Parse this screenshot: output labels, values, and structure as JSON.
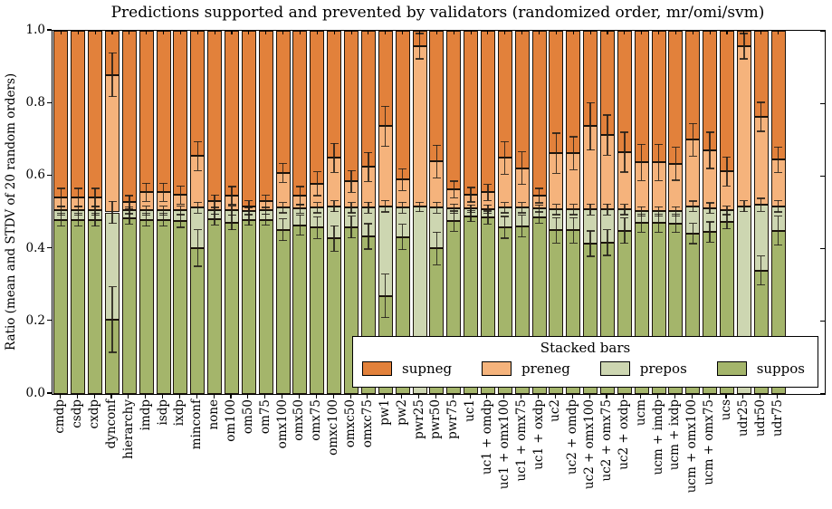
{
  "title": "Predictions supported and prevented by validators (randomized order, mr/omi/svm)",
  "ylabel": "Ratio (mean and STDV of 20 random orders)",
  "yticks": [
    "0.0",
    "0.2",
    "0.4",
    "0.6",
    "0.8",
    "1.0"
  ],
  "legend": {
    "title": "Stacked bars",
    "entries": [
      {
        "label": "supneg",
        "color": "#E2813B"
      },
      {
        "label": "preneg",
        "color": "#F5B37C"
      },
      {
        "label": "prepos",
        "color": "#CDD6B1"
      },
      {
        "label": "suppos",
        "color": "#A4B56B"
      }
    ]
  },
  "chart_data": {
    "type": "bar",
    "stacked": true,
    "title": "Predictions supported and prevented by validators (randomized order, mr/omi/svm)",
    "xlabel": "",
    "ylabel": "Ratio (mean and STDV of 20 random orders)",
    "ylim": [
      0,
      1
    ],
    "grid": false,
    "legend_position": "lower right",
    "series_order_bottom_to_top": [
      "suppos",
      "prepos",
      "preneg",
      "supneg"
    ],
    "colors": {
      "suppos": "#A4B56B",
      "prepos": "#CDD6B1",
      "preneg": "#F5B37C",
      "supneg": "#E2813B"
    },
    "note": "Values are cumulative segment tops (0-1). supneg_top is 1.0 for every bar. err = [stdv at suppos_top, stdv at prepos_top, stdv at preneg_top].",
    "bars": [
      {
        "label": "cmdp",
        "suppos_top": 0.48,
        "prepos_top": 0.505,
        "preneg_top": 0.541,
        "supneg_top": 1.0,
        "err": [
          0.018,
          0.012,
          0.025
        ]
      },
      {
        "label": "csdp",
        "suppos_top": 0.48,
        "prepos_top": 0.505,
        "preneg_top": 0.541,
        "supneg_top": 1.0,
        "err": [
          0.018,
          0.012,
          0.025
        ]
      },
      {
        "label": "cxdp",
        "suppos_top": 0.48,
        "prepos_top": 0.505,
        "preneg_top": 0.541,
        "supneg_top": 1.0,
        "err": [
          0.018,
          0.012,
          0.025
        ]
      },
      {
        "label": "dynconf",
        "suppos_top": 0.205,
        "prepos_top": 0.5,
        "preneg_top": 0.879,
        "supneg_top": 1.0,
        "err": [
          0.09,
          0.03,
          0.06
        ]
      },
      {
        "label": "hierarchy",
        "suppos_top": 0.483,
        "prepos_top": 0.505,
        "preneg_top": 0.528,
        "supneg_top": 1.0,
        "err": [
          0.015,
          0.01,
          0.018
        ]
      },
      {
        "label": "imdp",
        "suppos_top": 0.48,
        "prepos_top": 0.505,
        "preneg_top": 0.555,
        "supneg_top": 1.0,
        "err": [
          0.018,
          0.012,
          0.025
        ]
      },
      {
        "label": "isdp",
        "suppos_top": 0.48,
        "prepos_top": 0.505,
        "preneg_top": 0.555,
        "supneg_top": 1.0,
        "err": [
          0.018,
          0.012,
          0.025
        ]
      },
      {
        "label": "ixdp",
        "suppos_top": 0.477,
        "prepos_top": 0.505,
        "preneg_top": 0.548,
        "supneg_top": 1.0,
        "err": [
          0.018,
          0.012,
          0.025
        ]
      },
      {
        "label": "minconf",
        "suppos_top": 0.402,
        "prepos_top": 0.513,
        "preneg_top": 0.655,
        "supneg_top": 1.0,
        "err": [
          0.05,
          0.015,
          0.04
        ]
      },
      {
        "label": "none",
        "suppos_top": 0.481,
        "prepos_top": 0.505,
        "preneg_top": 0.53,
        "supneg_top": 1.0,
        "err": [
          0.015,
          0.01,
          0.018
        ]
      },
      {
        "label": "om100",
        "suppos_top": 0.472,
        "prepos_top": 0.505,
        "preneg_top": 0.546,
        "supneg_top": 1.0,
        "err": [
          0.02,
          0.012,
          0.025
        ]
      },
      {
        "label": "om50",
        "suppos_top": 0.48,
        "prepos_top": 0.503,
        "preneg_top": 0.517,
        "supneg_top": 1.0,
        "err": [
          0.015,
          0.01,
          0.015
        ]
      },
      {
        "label": "om75",
        "suppos_top": 0.48,
        "prepos_top": 0.505,
        "preneg_top": 0.53,
        "supneg_top": 1.0,
        "err": [
          0.015,
          0.01,
          0.018
        ]
      },
      {
        "label": "omx100",
        "suppos_top": 0.452,
        "prepos_top": 0.513,
        "preneg_top": 0.609,
        "supneg_top": 1.0,
        "err": [
          0.03,
          0.014,
          0.026
        ]
      },
      {
        "label": "omx50",
        "suppos_top": 0.465,
        "prepos_top": 0.51,
        "preneg_top": 0.546,
        "supneg_top": 1.0,
        "err": [
          0.028,
          0.013,
          0.025
        ]
      },
      {
        "label": "omx75",
        "suppos_top": 0.458,
        "prepos_top": 0.513,
        "preneg_top": 0.579,
        "supneg_top": 1.0,
        "err": [
          0.03,
          0.014,
          0.033
        ]
      },
      {
        "label": "omxc100",
        "suppos_top": 0.428,
        "prepos_top": 0.517,
        "preneg_top": 0.65,
        "supneg_top": 1.0,
        "err": [
          0.035,
          0.015,
          0.04
        ]
      },
      {
        "label": "omxc50",
        "suppos_top": 0.46,
        "prepos_top": 0.513,
        "preneg_top": 0.585,
        "supneg_top": 1.0,
        "err": [
          0.03,
          0.014,
          0.03
        ]
      },
      {
        "label": "omxc75",
        "suppos_top": 0.434,
        "prepos_top": 0.513,
        "preneg_top": 0.625,
        "supneg_top": 1.0,
        "err": [
          0.035,
          0.015,
          0.04
        ]
      },
      {
        "label": "pw1",
        "suppos_top": 0.27,
        "prepos_top": 0.517,
        "preneg_top": 0.737,
        "supneg_top": 1.0,
        "err": [
          0.06,
          0.016,
          0.055
        ]
      },
      {
        "label": "pw2",
        "suppos_top": 0.432,
        "prepos_top": 0.513,
        "preneg_top": 0.59,
        "supneg_top": 1.0,
        "err": [
          0.035,
          0.015,
          0.03
        ]
      },
      {
        "label": "pwr25",
        "suppos_top": 0.0,
        "prepos_top": 0.515,
        "preneg_top": 0.958,
        "supneg_top": 1.0,
        "err": [
          0.0,
          0.013,
          0.035
        ]
      },
      {
        "label": "pwr50",
        "suppos_top": 0.401,
        "prepos_top": 0.513,
        "preneg_top": 0.64,
        "supneg_top": 1.0,
        "err": [
          0.045,
          0.015,
          0.045
        ]
      },
      {
        "label": "pwr75",
        "suppos_top": 0.476,
        "prepos_top": 0.51,
        "preneg_top": 0.563,
        "supneg_top": 1.0,
        "err": [
          0.028,
          0.013,
          0.023
        ]
      },
      {
        "label": "uc1",
        "suppos_top": 0.49,
        "prepos_top": 0.51,
        "preneg_top": 0.549,
        "supneg_top": 1.0,
        "err": [
          0.015,
          0.01,
          0.02
        ]
      },
      {
        "label": "uc1 + omdp",
        "suppos_top": 0.486,
        "prepos_top": 0.509,
        "preneg_top": 0.555,
        "supneg_top": 1.0,
        "err": [
          0.018,
          0.011,
          0.022
        ]
      },
      {
        "label": "uc1 + omx100",
        "suppos_top": 0.459,
        "prepos_top": 0.513,
        "preneg_top": 0.65,
        "supneg_top": 1.0,
        "err": [
          0.03,
          0.014,
          0.045
        ]
      },
      {
        "label": "uc1 + omx75",
        "suppos_top": 0.462,
        "prepos_top": 0.513,
        "preneg_top": 0.622,
        "supneg_top": 1.0,
        "err": [
          0.03,
          0.014,
          0.045
        ]
      },
      {
        "label": "uc1 + oxdp",
        "suppos_top": 0.487,
        "prepos_top": 0.51,
        "preneg_top": 0.546,
        "supneg_top": 1.0,
        "err": [
          0.016,
          0.01,
          0.02
        ]
      },
      {
        "label": "uc2",
        "suppos_top": 0.451,
        "prepos_top": 0.508,
        "preneg_top": 0.663,
        "supneg_top": 1.0,
        "err": [
          0.035,
          0.014,
          0.055
        ]
      },
      {
        "label": "uc2 + omdp",
        "suppos_top": 0.451,
        "prepos_top": 0.508,
        "preneg_top": 0.663,
        "supneg_top": 1.0,
        "err": [
          0.035,
          0.014,
          0.045
        ]
      },
      {
        "label": "uc2 + omx100",
        "suppos_top": 0.414,
        "prepos_top": 0.508,
        "preneg_top": 0.737,
        "supneg_top": 1.0,
        "err": [
          0.035,
          0.015,
          0.065
        ]
      },
      {
        "label": "uc2 + omx75",
        "suppos_top": 0.417,
        "prepos_top": 0.508,
        "preneg_top": 0.713,
        "supneg_top": 1.0,
        "err": [
          0.035,
          0.015,
          0.055
        ]
      },
      {
        "label": "uc2 + oxdp",
        "suppos_top": 0.45,
        "prepos_top": 0.508,
        "preneg_top": 0.666,
        "supneg_top": 1.0,
        "err": [
          0.035,
          0.014,
          0.055
        ]
      },
      {
        "label": "ucm",
        "suppos_top": 0.471,
        "prepos_top": 0.503,
        "preneg_top": 0.638,
        "supneg_top": 1.0,
        "err": [
          0.025,
          0.012,
          0.05
        ]
      },
      {
        "label": "ucm + imdp",
        "suppos_top": 0.471,
        "prepos_top": 0.503,
        "preneg_top": 0.638,
        "supneg_top": 1.0,
        "err": [
          0.025,
          0.012,
          0.05
        ]
      },
      {
        "label": "ucm + ixdp",
        "suppos_top": 0.47,
        "prepos_top": 0.503,
        "preneg_top": 0.634,
        "supneg_top": 1.0,
        "err": [
          0.025,
          0.012,
          0.045
        ]
      },
      {
        "label": "ucm + omx100",
        "suppos_top": 0.442,
        "prepos_top": 0.517,
        "preneg_top": 0.7,
        "supneg_top": 1.0,
        "err": [
          0.028,
          0.014,
          0.045
        ]
      },
      {
        "label": "ucm + omx75",
        "suppos_top": 0.446,
        "prepos_top": 0.512,
        "preneg_top": 0.671,
        "supneg_top": 1.0,
        "err": [
          0.028,
          0.014,
          0.05
        ]
      },
      {
        "label": "ucs",
        "suppos_top": 0.475,
        "prepos_top": 0.505,
        "preneg_top": 0.613,
        "supneg_top": 1.0,
        "err": [
          0.02,
          0.012,
          0.04
        ]
      },
      {
        "label": "udr25",
        "suppos_top": 0.0,
        "prepos_top": 0.517,
        "preneg_top": 0.958,
        "supneg_top": 1.0,
        "err": [
          0.0,
          0.015,
          0.035
        ]
      },
      {
        "label": "udr50",
        "suppos_top": 0.34,
        "prepos_top": 0.521,
        "preneg_top": 0.763,
        "supneg_top": 1.0,
        "err": [
          0.04,
          0.018,
          0.04
        ]
      },
      {
        "label": "udr75",
        "suppos_top": 0.45,
        "prepos_top": 0.517,
        "preneg_top": 0.645,
        "supneg_top": 1.0,
        "err": [
          0.04,
          0.016,
          0.035
        ]
      }
    ]
  }
}
